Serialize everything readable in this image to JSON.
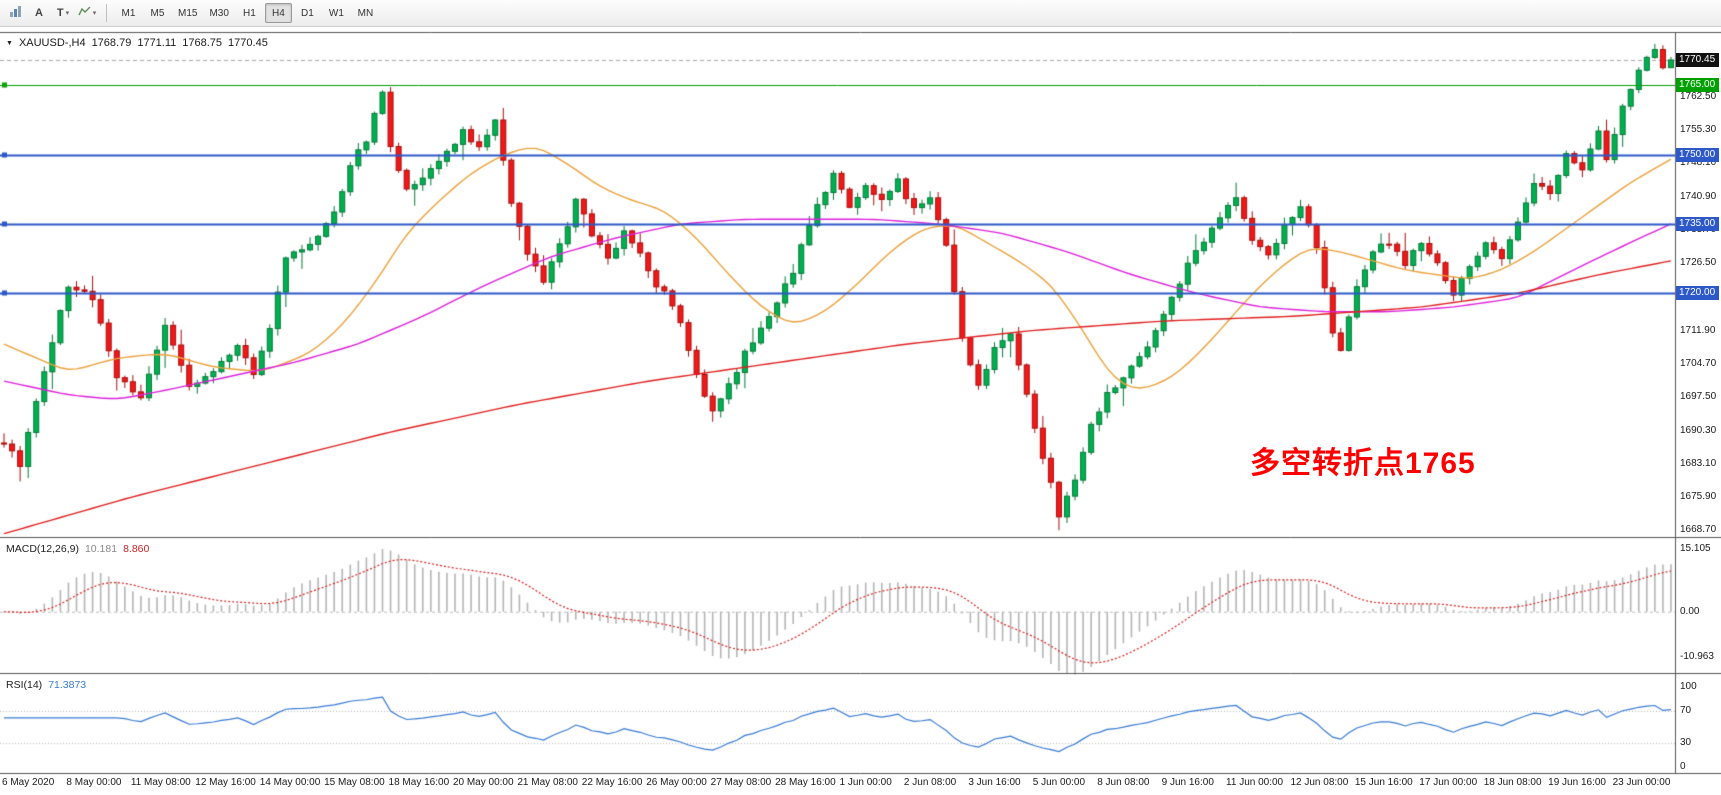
{
  "toolbar": {
    "icon_names": [
      "chart-bars-icon",
      "arrow-tool-a",
      "text-tool-t",
      "line-studies-zigzag"
    ],
    "a_button_label": "A",
    "t_button_label": "T",
    "caret": "▾",
    "timeframes": [
      "M1",
      "M5",
      "M15",
      "M30",
      "H1",
      "H4",
      "D1",
      "W1",
      "MN"
    ],
    "active_timeframe": "H4"
  },
  "header": {
    "menu_arrow": "▼",
    "symbol": "XAUUSD-,H4",
    "open": "1768.79",
    "high": "1771.11",
    "low": "1768.75",
    "close": "1770.45"
  },
  "annotation": {
    "text": "多空转折点1765",
    "color": "#ff0000"
  },
  "main_chart": {
    "price_min": 1667.5,
    "price_max": 1776.5,
    "price_axis_labels": [
      1762.5,
      1755.3,
      1748.1,
      1740.9,
      1733.7,
      1726.5,
      1719.3,
      1711.9,
      1704.7,
      1697.5,
      1690.3,
      1683.1,
      1675.9,
      1668.7
    ],
    "price_badges": [
      {
        "value": 1770.45,
        "label": "1770.45",
        "bg": "#111111"
      },
      {
        "value": 1765.0,
        "label": "1765.00",
        "bg": "#00a000"
      },
      {
        "value": 1750.0,
        "label": "1750.00",
        "bg": "#2d58c8"
      },
      {
        "value": 1735.0,
        "label": "1735.00",
        "bg": "#2d58c8"
      },
      {
        "value": 1720.0,
        "label": "1720.00",
        "bg": "#2d58c8"
      }
    ],
    "hlines": [
      {
        "price": 1765,
        "color": "#00a000",
        "width": 1
      },
      {
        "price": 1750,
        "color": "#2d58c8",
        "width": 2
      },
      {
        "price": 1735,
        "color": "#2d58c8",
        "width": 2
      },
      {
        "price": 1720,
        "color": "#2d58c8",
        "width": 2
      }
    ],
    "last_price": 1770.45,
    "candles": {
      "count": 208,
      "up_fill": "#00b050",
      "up_stroke": "#067a3a",
      "down_fill": "#f01818",
      "down_stroke": "#a80f0f",
      "close_waypoints": [
        [
          0,
          1688
        ],
        [
          2,
          1683
        ],
        [
          5,
          1703
        ],
        [
          8,
          1722
        ],
        [
          11,
          1719
        ],
        [
          14,
          1702
        ],
        [
          17,
          1697
        ],
        [
          20,
          1713
        ],
        [
          23,
          1700
        ],
        [
          26,
          1703
        ],
        [
          29,
          1709
        ],
        [
          31,
          1702
        ],
        [
          33,
          1712
        ],
        [
          35,
          1727
        ],
        [
          38,
          1731
        ],
        [
          41,
          1737
        ],
        [
          43,
          1748
        ],
        [
          45,
          1753
        ],
        [
          47,
          1764
        ],
        [
          48,
          1752
        ],
        [
          50,
          1742
        ],
        [
          52,
          1745
        ],
        [
          55,
          1750
        ],
        [
          57,
          1755
        ],
        [
          59,
          1751
        ],
        [
          61,
          1757
        ],
        [
          63,
          1740
        ],
        [
          65,
          1728
        ],
        [
          67,
          1723
        ],
        [
          69,
          1730
        ],
        [
          71,
          1740
        ],
        [
          73,
          1733
        ],
        [
          75,
          1727
        ],
        [
          77,
          1733
        ],
        [
          79,
          1728
        ],
        [
          81,
          1722
        ],
        [
          83,
          1718
        ],
        [
          85,
          1708
        ],
        [
          87,
          1697
        ],
        [
          88,
          1694
        ],
        [
          90,
          1700
        ],
        [
          92,
          1707
        ],
        [
          94,
          1712
        ],
        [
          96,
          1718
        ],
        [
          98,
          1725
        ],
        [
          100,
          1735
        ],
        [
          102,
          1742
        ],
        [
          103,
          1746
        ],
        [
          105,
          1738
        ],
        [
          107,
          1743
        ],
        [
          109,
          1740
        ],
        [
          111,
          1744
        ],
        [
          113,
          1738
        ],
        [
          115,
          1741
        ],
        [
          117,
          1731
        ],
        [
          119,
          1710
        ],
        [
          121,
          1700
        ],
        [
          123,
          1708
        ],
        [
          125,
          1711
        ],
        [
          127,
          1698
        ],
        [
          129,
          1685
        ],
        [
          131,
          1672
        ],
        [
          133,
          1679
        ],
        [
          135,
          1691
        ],
        [
          137,
          1698
        ],
        [
          139,
          1701
        ],
        [
          141,
          1706
        ],
        [
          143,
          1712
        ],
        [
          145,
          1719
        ],
        [
          147,
          1726
        ],
        [
          149,
          1731
        ],
        [
          151,
          1736
        ],
        [
          153,
          1741
        ],
        [
          155,
          1732
        ],
        [
          157,
          1728
        ],
        [
          159,
          1735
        ],
        [
          161,
          1739
        ],
        [
          163,
          1730
        ],
        [
          165,
          1712
        ],
        [
          166,
          1707
        ],
        [
          168,
          1722
        ],
        [
          170,
          1729
        ],
        [
          172,
          1731
        ],
        [
          174,
          1726
        ],
        [
          176,
          1731
        ],
        [
          178,
          1726
        ],
        [
          180,
          1719
        ],
        [
          182,
          1726
        ],
        [
          184,
          1731
        ],
        [
          186,
          1727
        ],
        [
          188,
          1736
        ],
        [
          190,
          1744
        ],
        [
          192,
          1741
        ],
        [
          194,
          1750
        ],
        [
          196,
          1747
        ],
        [
          198,
          1755
        ],
        [
          199,
          1749
        ],
        [
          201,
          1761
        ],
        [
          203,
          1768
        ],
        [
          205,
          1773
        ],
        [
          206,
          1769
        ],
        [
          207,
          1770.45
        ]
      ]
    },
    "moving_averages": [
      {
        "name": "ma-fast",
        "color": "#eda23c",
        "waypoints": [
          [
            0,
            1709
          ],
          [
            8,
            1703
          ],
          [
            14,
            1706
          ],
          [
            20,
            1707
          ],
          [
            26,
            1704
          ],
          [
            32,
            1703
          ],
          [
            38,
            1707
          ],
          [
            42,
            1713
          ],
          [
            46,
            1722
          ],
          [
            50,
            1733
          ],
          [
            54,
            1740
          ],
          [
            58,
            1746
          ],
          [
            62,
            1750
          ],
          [
            66,
            1752
          ],
          [
            70,
            1748
          ],
          [
            74,
            1743
          ],
          [
            78,
            1740
          ],
          [
            82,
            1738
          ],
          [
            86,
            1732
          ],
          [
            90,
            1724
          ],
          [
            94,
            1717
          ],
          [
            98,
            1713
          ],
          [
            102,
            1716
          ],
          [
            106,
            1722
          ],
          [
            110,
            1729
          ],
          [
            114,
            1734
          ],
          [
            118,
            1735
          ],
          [
            122,
            1731
          ],
          [
            126,
            1727
          ],
          [
            130,
            1722
          ],
          [
            134,
            1712
          ],
          [
            137,
            1703
          ],
          [
            140,
            1699
          ],
          [
            143,
            1700
          ],
          [
            146,
            1703
          ],
          [
            150,
            1710
          ],
          [
            154,
            1718
          ],
          [
            158,
            1725
          ],
          [
            162,
            1730
          ],
          [
            166,
            1729
          ],
          [
            170,
            1727
          ],
          [
            174,
            1725
          ],
          [
            178,
            1724
          ],
          [
            182,
            1723
          ],
          [
            186,
            1725
          ],
          [
            190,
            1729
          ],
          [
            194,
            1734
          ],
          [
            198,
            1739
          ],
          [
            202,
            1744
          ],
          [
            207,
            1749
          ]
        ]
      },
      {
        "name": "ma-medium",
        "color": "#dd22dd",
        "waypoints": [
          [
            0,
            1701
          ],
          [
            8,
            1698
          ],
          [
            14,
            1697
          ],
          [
            20,
            1699
          ],
          [
            28,
            1702
          ],
          [
            36,
            1705
          ],
          [
            44,
            1709
          ],
          [
            52,
            1715
          ],
          [
            60,
            1722
          ],
          [
            68,
            1728
          ],
          [
            76,
            1732
          ],
          [
            84,
            1735
          ],
          [
            92,
            1736
          ],
          [
            100,
            1736
          ],
          [
            108,
            1736
          ],
          [
            116,
            1735
          ],
          [
            124,
            1733
          ],
          [
            132,
            1729
          ],
          [
            140,
            1724
          ],
          [
            148,
            1720
          ],
          [
            156,
            1717
          ],
          [
            164,
            1716
          ],
          [
            172,
            1716
          ],
          [
            180,
            1717
          ],
          [
            188,
            1719
          ],
          [
            196,
            1726
          ],
          [
            202,
            1731
          ],
          [
            207,
            1735
          ]
        ]
      },
      {
        "name": "ma-slow",
        "color": "#e02020",
        "waypoints": [
          [
            0,
            1668
          ],
          [
            16,
            1676
          ],
          [
            32,
            1683
          ],
          [
            48,
            1690
          ],
          [
            64,
            1696
          ],
          [
            80,
            1701
          ],
          [
            96,
            1705
          ],
          [
            112,
            1709
          ],
          [
            128,
            1712
          ],
          [
            144,
            1714
          ],
          [
            160,
            1715
          ],
          [
            176,
            1717
          ],
          [
            188,
            1720
          ],
          [
            198,
            1724
          ],
          [
            207,
            1727
          ]
        ]
      }
    ]
  },
  "macd_panel": {
    "label": "MACD(12,26,9)",
    "histogram_value": "10.181",
    "signal_value": "8.860",
    "axis": [
      {
        "label": "15.105",
        "value": 15.105
      },
      {
        "label": "0.00",
        "value": 0
      },
      {
        "label": "-10.963",
        "value": -10.963
      }
    ],
    "range": [
      -14.5,
      17.5
    ],
    "histogram_color": "#b6b6b6",
    "signal_color": "#e02020"
  },
  "rsi_panel": {
    "label": "RSI(14)",
    "value": "71.3873",
    "axis": [
      {
        "label": "100",
        "value": 100
      },
      {
        "label": "70",
        "value": 70
      },
      {
        "label": "30",
        "value": 30
      },
      {
        "label": "0",
        "value": 0
      }
    ],
    "levels": [
      70,
      30
    ],
    "range": [
      -7,
      114.6
    ],
    "line_color": "#3a7bd5",
    "level_color": "#b8b8b8"
  },
  "time_axis": {
    "labels": [
      "6 May 2020",
      "8 May 00:00",
      "11 May 08:00",
      "12 May 16:00",
      "14 May 00:00",
      "15 May 08:00",
      "18 May 16:00",
      "20 May 00:00",
      "21 May 08:00",
      "22 May 16:00",
      "26 May 00:00",
      "27 May 08:00",
      "28 May 16:00",
      "1 Jun 00:00",
      "2 Jun 08:00",
      "3 Jun 16:00",
      "5 Jun 00:00",
      "8 Jun 08:00",
      "9 Jun 16:00",
      "11 Jun 00:00",
      "12 Jun 08:00",
      "15 Jun 16:00",
      "17 Jun 00:00",
      "18 Jun 08:00",
      "19 Jun 16:00",
      "23 Jun 00:00"
    ]
  }
}
